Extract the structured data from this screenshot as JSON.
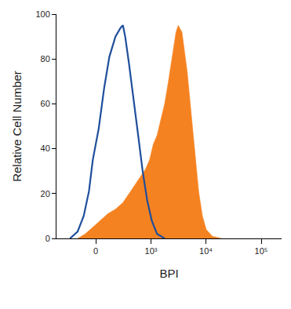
{
  "chart_data": {
    "type": "area",
    "x_label": "BPI",
    "y_label": "Relative Cell Number",
    "xlim": [
      -500,
      234000
    ],
    "xticks": [
      0,
      {
        "value": 1000,
        "label": "10³"
      },
      {
        "value": 10000,
        "label": "10⁴"
      },
      {
        "value": 100000,
        "label": "10⁵"
      }
    ],
    "ylim": [
      0,
      100
    ],
    "yticks": [
      0,
      20,
      40,
      60,
      80,
      100
    ],
    "grid": false,
    "series": [
      {
        "type": "line",
        "color": "#1f4e9c",
        "x": [
          -261,
          -168,
          -106,
          -58,
          -25,
          25,
          72,
          121,
          185,
          250,
          281,
          315,
          378,
          485,
          574,
          699,
          850,
          1032,
          1293,
          1778
        ],
        "values": [
          0,
          3,
          10,
          21,
          35,
          49,
          67,
          81,
          90,
          94,
          95,
          90,
          78,
          60,
          46,
          30,
          17,
          8,
          2,
          0
        ]
      },
      {
        "type": "area",
        "color": "#f58220",
        "x": [
          -168,
          -92,
          -25,
          38,
          106,
          185,
          281,
          408,
          574,
          796,
          939,
          1101,
          1293,
          1519,
          1778,
          2083,
          2440,
          2858,
          3141,
          3676,
          4585,
          5373,
          6282,
          7373,
          8625,
          10100,
          13009,
          19008
        ],
        "values": [
          0,
          2,
          5,
          8,
          11,
          13,
          16,
          21,
          26,
          31,
          35,
          42,
          46,
          53,
          60,
          70,
          81,
          92,
          95,
          92,
          74,
          56,
          38,
          21,
          10,
          4,
          1,
          0
        ]
      }
    ]
  }
}
